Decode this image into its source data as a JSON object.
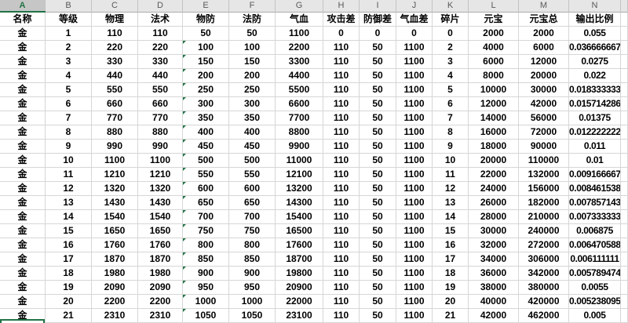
{
  "sheet": {
    "column_letters": [
      "A",
      "B",
      "C",
      "D",
      "E",
      "F",
      "G",
      "H",
      "I",
      "J",
      "K",
      "L",
      "M",
      "N",
      ""
    ],
    "selected_column": "A",
    "headers": [
      "名称",
      "等级",
      "物理",
      "法术",
      "物防",
      "法防",
      "气血",
      "攻击差",
      "防御差",
      "气血差",
      "碎片",
      "元宝",
      "元宝总",
      "输出比例"
    ],
    "highlighted_header_columns": [
      "元宝",
      "元宝总"
    ],
    "rows": [
      [
        "金",
        "1",
        "110",
        "110",
        "50",
        "50",
        "1100",
        "0",
        "0",
        "0",
        "0",
        "2000",
        "2000",
        "0.055"
      ],
      [
        "金",
        "2",
        "220",
        "220",
        "100",
        "100",
        "2200",
        "110",
        "50",
        "1100",
        "2",
        "4000",
        "6000",
        "0.036666667"
      ],
      [
        "金",
        "3",
        "330",
        "330",
        "150",
        "150",
        "3300",
        "110",
        "50",
        "1100",
        "3",
        "6000",
        "12000",
        "0.0275"
      ],
      [
        "金",
        "4",
        "440",
        "440",
        "200",
        "200",
        "4400",
        "110",
        "50",
        "1100",
        "4",
        "8000",
        "20000",
        "0.022"
      ],
      [
        "金",
        "5",
        "550",
        "550",
        "250",
        "250",
        "5500",
        "110",
        "50",
        "1100",
        "5",
        "10000",
        "30000",
        "0.018333333"
      ],
      [
        "金",
        "6",
        "660",
        "660",
        "300",
        "300",
        "6600",
        "110",
        "50",
        "1100",
        "6",
        "12000",
        "42000",
        "0.015714286"
      ],
      [
        "金",
        "7",
        "770",
        "770",
        "350",
        "350",
        "7700",
        "110",
        "50",
        "1100",
        "7",
        "14000",
        "56000",
        "0.01375"
      ],
      [
        "金",
        "8",
        "880",
        "880",
        "400",
        "400",
        "8800",
        "110",
        "50",
        "1100",
        "8",
        "16000",
        "72000",
        "0.012222222"
      ],
      [
        "金",
        "9",
        "990",
        "990",
        "450",
        "450",
        "9900",
        "110",
        "50",
        "1100",
        "9",
        "18000",
        "90000",
        "0.011"
      ],
      [
        "金",
        "10",
        "1100",
        "1100",
        "500",
        "500",
        "11000",
        "110",
        "50",
        "1100",
        "10",
        "20000",
        "110000",
        "0.01"
      ],
      [
        "金",
        "11",
        "1210",
        "1210",
        "550",
        "550",
        "12100",
        "110",
        "50",
        "1100",
        "11",
        "22000",
        "132000",
        "0.009166667"
      ],
      [
        "金",
        "12",
        "1320",
        "1320",
        "600",
        "600",
        "13200",
        "110",
        "50",
        "1100",
        "12",
        "24000",
        "156000",
        "0.008461538"
      ],
      [
        "金",
        "13",
        "1430",
        "1430",
        "650",
        "650",
        "14300",
        "110",
        "50",
        "1100",
        "13",
        "26000",
        "182000",
        "0.007857143"
      ],
      [
        "金",
        "14",
        "1540",
        "1540",
        "700",
        "700",
        "15400",
        "110",
        "50",
        "1100",
        "14",
        "28000",
        "210000",
        "0.007333333"
      ],
      [
        "金",
        "15",
        "1650",
        "1650",
        "750",
        "750",
        "16500",
        "110",
        "50",
        "1100",
        "15",
        "30000",
        "240000",
        "0.006875"
      ],
      [
        "金",
        "16",
        "1760",
        "1760",
        "800",
        "800",
        "17600",
        "110",
        "50",
        "1100",
        "16",
        "32000",
        "272000",
        "0.006470588"
      ],
      [
        "金",
        "17",
        "1870",
        "1870",
        "850",
        "850",
        "18700",
        "110",
        "50",
        "1100",
        "17",
        "34000",
        "306000",
        "0.006111111"
      ],
      [
        "金",
        "18",
        "1980",
        "1980",
        "900",
        "900",
        "19800",
        "110",
        "50",
        "1100",
        "18",
        "36000",
        "342000",
        "0.005789474"
      ],
      [
        "金",
        "19",
        "2090",
        "2090",
        "950",
        "950",
        "20900",
        "110",
        "50",
        "1100",
        "19",
        "38000",
        "380000",
        "0.0055"
      ],
      [
        "金",
        "20",
        "2200",
        "2200",
        "1000",
        "1000",
        "22000",
        "110",
        "50",
        "1100",
        "20",
        "40000",
        "420000",
        "0.005238095"
      ],
      [
        "金",
        "21",
        "2310",
        "2310",
        "1050",
        "1050",
        "23100",
        "110",
        "50",
        "1100",
        "21",
        "42000",
        "462000",
        "0.005"
      ]
    ],
    "text_error_indicator": {
      "column_letter": "E",
      "levels": [
        2,
        3,
        4,
        5,
        6,
        7,
        8,
        9,
        10,
        11,
        12,
        13,
        14,
        15,
        16,
        17,
        18,
        19,
        20,
        21
      ]
    },
    "colors": {
      "highlight_fill": "#FFFF00",
      "selection_green": "#217346",
      "header_bg": "#E6E6E6",
      "selected_header_bg": "#C6C6C6",
      "grid_line": "#D6D6D6"
    }
  }
}
